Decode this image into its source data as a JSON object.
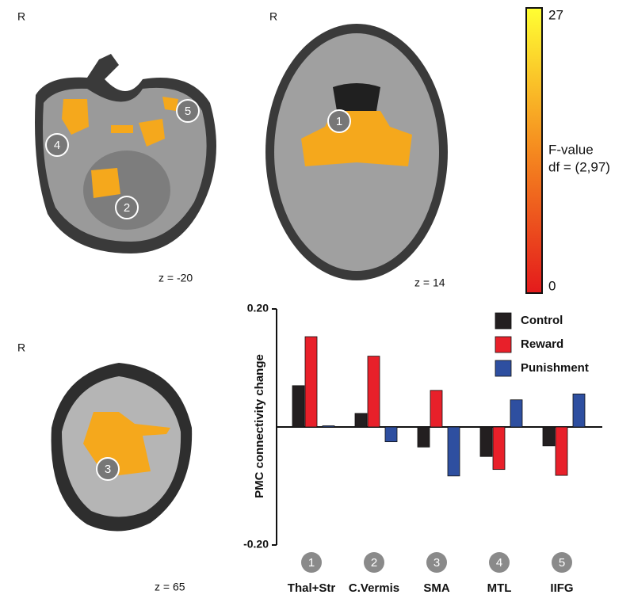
{
  "brain_panels": [
    {
      "side": "R",
      "slice": "z = -20",
      "regions": [
        "2",
        "4",
        "5"
      ]
    },
    {
      "side": "R",
      "slice": "z = 14",
      "regions": [
        "1"
      ]
    },
    {
      "side": "R",
      "slice": "z = 65",
      "regions": [
        "3"
      ]
    }
  ],
  "colorbar": {
    "max": "27",
    "min": "0",
    "label": "F-value",
    "df": "df = (2,97)"
  },
  "chart_data": {
    "type": "bar",
    "categories": [
      "Thal+Str",
      "C.Vermis",
      "SMA",
      "MTL",
      "IIFG"
    ],
    "category_numbers": [
      "1",
      "2",
      "3",
      "4",
      "5"
    ],
    "ylabel": "PMC connectivity change",
    "ylim": [
      -0.2,
      0.2
    ],
    "yticks": [
      {
        "value": 0.2,
        "label": "0.20"
      },
      {
        "value": -0.2,
        "label": "-0.20"
      }
    ],
    "legend": "top-right",
    "series": [
      {
        "name": "Control",
        "color": "#231f20",
        "values": [
          0.07,
          0.023,
          -0.034,
          -0.05,
          -0.032
        ]
      },
      {
        "name": "Reward",
        "color": "#e8202a",
        "values": [
          0.153,
          0.12,
          0.062,
          -0.072,
          -0.082
        ]
      },
      {
        "name": "Punishment",
        "color": "#2e4fa0",
        "values": [
          0.002,
          -0.025,
          -0.083,
          0.046,
          0.056
        ]
      }
    ]
  }
}
